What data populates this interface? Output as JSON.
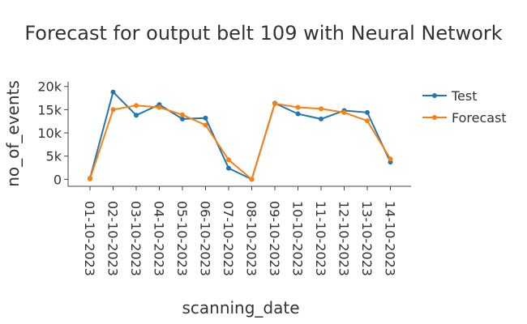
{
  "chart_data": {
    "type": "line",
    "title": "Forecast for output belt 109 with Neural Network",
    "xlabel": "scanning_date",
    "ylabel": "no_of_events",
    "categories": [
      "01-10-2023",
      "02-10-2023",
      "03-10-2023",
      "04-10-2023",
      "05-10-2023",
      "06-10-2023",
      "07-10-2023",
      "08-10-2023",
      "09-10-2023",
      "10-10-2023",
      "11-10-2023",
      "12-10-2023",
      "13-10-2023",
      "14-10-2023"
    ],
    "ylim": [
      -1500,
      21000
    ],
    "yticks": [
      0,
      5000,
      10000,
      15000,
      20000
    ],
    "ytick_labels": [
      "0",
      "5k",
      "10k",
      "15k",
      "20k"
    ],
    "grid": false,
    "legend_position": "top-right",
    "series": [
      {
        "name": "Test",
        "color": "#1f77b4",
        "values": [
          200,
          18800,
          13800,
          16100,
          13000,
          13200,
          2400,
          0,
          16400,
          14100,
          13000,
          14800,
          14400,
          3700
        ]
      },
      {
        "name": "Forecast",
        "color": "#ff7f0e",
        "values": [
          100,
          15000,
          15900,
          15500,
          13900,
          11700,
          4200,
          0,
          16300,
          15500,
          15200,
          14400,
          12600,
          4400
        ]
      }
    ]
  }
}
